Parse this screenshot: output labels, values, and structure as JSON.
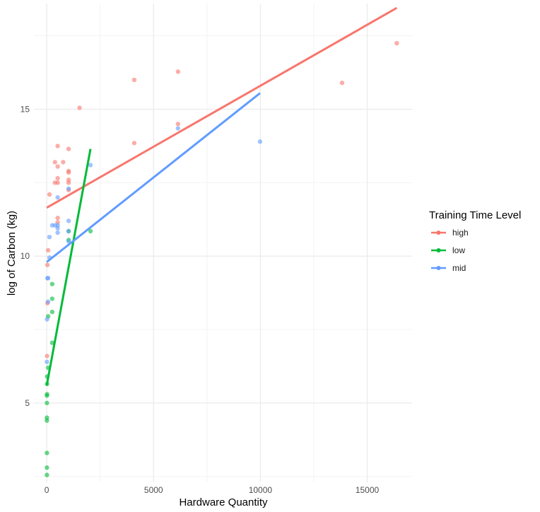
{
  "chart_data": {
    "type": "scatter",
    "title": "",
    "xlabel": "Hardware Quantity",
    "ylabel": "log of Carbon (kg)",
    "xlim": [
      -600,
      17100
    ],
    "ylim": [
      2.3,
      18.6
    ],
    "x_ticks": [
      0,
      5000,
      10000,
      15000
    ],
    "x_tick_labels": [
      "0",
      "5000",
      "10000",
      "15000"
    ],
    "y_ticks": [
      5,
      10,
      15
    ],
    "y_tick_labels": [
      "5",
      "10",
      "15"
    ],
    "grid": true,
    "legend": {
      "title": "Training Time Level",
      "placement": "right"
    },
    "series": [
      {
        "name": "high",
        "color": "#F8766D",
        "points": [
          [
            16384,
            17.25
          ],
          [
            13824,
            15.9
          ],
          [
            6144,
            16.28
          ],
          [
            4096,
            16.0
          ],
          [
            1536,
            15.05
          ],
          [
            6144,
            14.5
          ],
          [
            4096,
            13.85
          ],
          [
            512,
            13.75
          ],
          [
            1024,
            13.65
          ],
          [
            768,
            13.2
          ],
          [
            384,
            13.2
          ],
          [
            512,
            13.05
          ],
          [
            1024,
            12.9
          ],
          [
            1024,
            12.85
          ],
          [
            512,
            12.65
          ],
          [
            1024,
            12.6
          ],
          [
            1024,
            12.5
          ],
          [
            384,
            12.5
          ],
          [
            512,
            12.5
          ],
          [
            1024,
            12.25
          ],
          [
            128,
            12.1
          ],
          [
            512,
            11.3
          ],
          [
            512,
            11.15
          ],
          [
            64,
            10.2
          ],
          [
            32,
            9.7
          ],
          [
            32,
            8.4
          ],
          [
            16,
            6.6
          ]
        ],
        "fit": {
          "x": [
            0,
            16384
          ],
          "y": [
            11.65,
            18.45
          ]
        }
      },
      {
        "name": "low",
        "color": "#00BA38",
        "points": [
          [
            2048,
            10.85
          ],
          [
            1024,
            10.85
          ],
          [
            1024,
            10.55
          ],
          [
            256,
            9.05
          ],
          [
            256,
            8.55
          ],
          [
            256,
            8.1
          ],
          [
            64,
            7.95
          ],
          [
            256,
            7.05
          ],
          [
            64,
            6.2
          ],
          [
            16,
            5.9
          ],
          [
            16,
            5.65
          ],
          [
            16,
            5.3
          ],
          [
            8,
            5.25
          ],
          [
            8,
            5.0
          ],
          [
            8,
            4.5
          ],
          [
            8,
            4.4
          ],
          [
            8,
            3.3
          ],
          [
            8,
            2.8
          ],
          [
            8,
            2.55
          ]
        ],
        "fit": {
          "x": [
            0,
            2048
          ],
          "y": [
            5.6,
            13.65
          ]
        }
      },
      {
        "name": "mid",
        "color": "#619CFF",
        "points": [
          [
            6144,
            14.35
          ],
          [
            9984,
            13.9
          ],
          [
            2048,
            13.1
          ],
          [
            512,
            12.0
          ],
          [
            1024,
            12.3
          ],
          [
            1024,
            11.2
          ],
          [
            256,
            11.05
          ],
          [
            384,
            11.05
          ],
          [
            512,
            11.05
          ],
          [
            512,
            10.95
          ],
          [
            512,
            10.8
          ],
          [
            1024,
            10.85
          ],
          [
            1024,
            10.5
          ],
          [
            128,
            10.65
          ],
          [
            128,
            9.95
          ],
          [
            64,
            9.25
          ],
          [
            32,
            9.25
          ],
          [
            64,
            8.45
          ],
          [
            16,
            7.85
          ],
          [
            8,
            6.4
          ]
        ],
        "fit": {
          "x": [
            0,
            9984
          ],
          "y": [
            9.8,
            15.55
          ]
        }
      }
    ]
  }
}
